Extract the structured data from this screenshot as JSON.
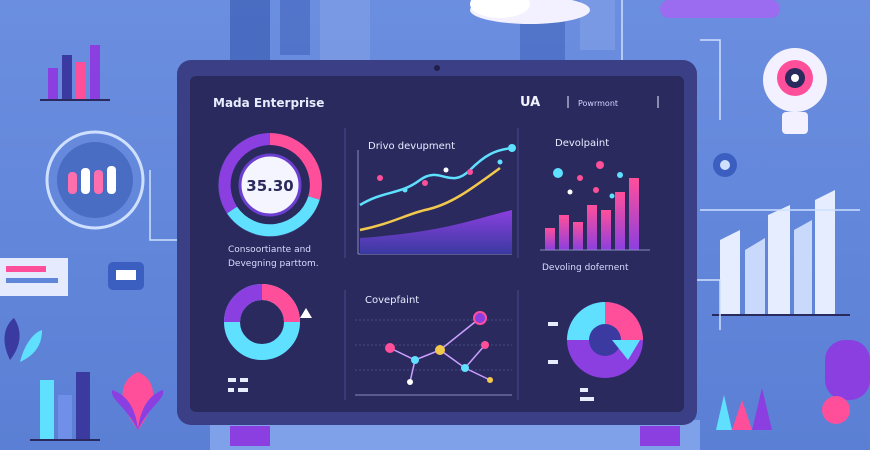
{
  "colors": {
    "background": "#5f86d8",
    "screen": "#2b2a5e",
    "bezel": "#3b3f86",
    "pink": "#ff4f9a",
    "cyan": "#5fe0ff",
    "yellow": "#f2c94c",
    "purple": "#8b3fe0"
  },
  "header": {
    "title": "Mada Enterprise",
    "ua_label": "UA",
    "right_label": "Powrmont"
  },
  "gauge_panel": {
    "value": "35.30",
    "caption_line1": "Consoortiante and",
    "caption_line2": "Devegning parttom."
  },
  "line_panel": {
    "title": "Drivo devupment"
  },
  "bar_panel": {
    "title": "Devolpaint",
    "caption": "Devoling dofernent"
  },
  "network_panel": {
    "title": "Covepfaint"
  },
  "icons": [
    "lightbulb-icon",
    "flower-icon",
    "chat-bubble-icon",
    "cloud-icon",
    "gear-icon"
  ]
}
